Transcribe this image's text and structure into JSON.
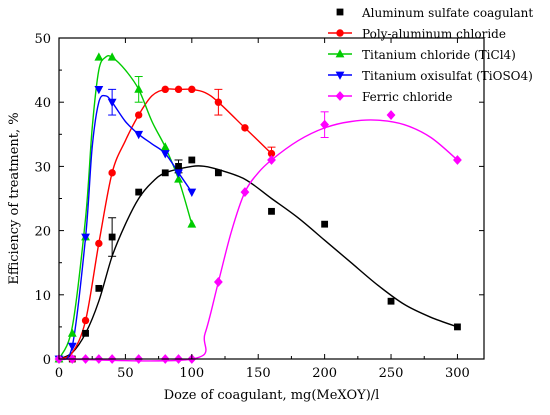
{
  "chart_data": {
    "type": "scatter",
    "xlabel": "Doze of coagulant, mg(MeXOY)/l",
    "ylabel": "Efficiency of treatment, %",
    "xlim": [
      0,
      320
    ],
    "ylim": [
      0,
      50
    ],
    "xticks": [
      0,
      50,
      100,
      150,
      200,
      250,
      300
    ],
    "yticks": [
      0,
      10,
      20,
      30,
      40,
      50
    ],
    "grid": false,
    "legend_position": "top-right",
    "series": [
      {
        "name": "Aluminum sulfate coagulant",
        "color": "#000000",
        "marker": "square",
        "fit_color": "#000000",
        "points": [
          [
            0,
            0
          ],
          [
            10,
            0
          ],
          [
            20,
            4
          ],
          [
            30,
            11
          ],
          [
            40,
            19
          ],
          [
            60,
            26
          ],
          [
            80,
            29
          ],
          [
            90,
            30
          ],
          [
            100,
            31
          ],
          [
            120,
            29
          ],
          [
            160,
            23
          ],
          [
            200,
            21
          ],
          [
            250,
            9
          ],
          [
            300,
            5
          ]
        ],
        "error_bars": [
          [
            40,
            19,
            3
          ],
          [
            90,
            30,
            1
          ]
        ],
        "fit": [
          [
            0,
            0
          ],
          [
            10,
            1
          ],
          [
            20,
            4
          ],
          [
            30,
            9
          ],
          [
            40,
            16
          ],
          [
            50,
            21
          ],
          [
            60,
            25
          ],
          [
            70,
            27.5
          ],
          [
            80,
            29
          ],
          [
            100,
            30
          ],
          [
            110,
            30
          ],
          [
            120,
            29.5
          ],
          [
            140,
            28
          ],
          [
            160,
            25
          ],
          [
            180,
            22
          ],
          [
            200,
            18.5
          ],
          [
            220,
            15
          ],
          [
            240,
            11.5
          ],
          [
            260,
            8.5
          ],
          [
            280,
            6.5
          ],
          [
            300,
            5
          ]
        ]
      },
      {
        "name": "Poly-aluminum chloride",
        "color": "#ff0000",
        "marker": "circle",
        "fit_color": "#ff0000",
        "points": [
          [
            0,
            0
          ],
          [
            10,
            0
          ],
          [
            20,
            6
          ],
          [
            30,
            18
          ],
          [
            40,
            29
          ],
          [
            60,
            38
          ],
          [
            80,
            42
          ],
          [
            90,
            42
          ],
          [
            100,
            42
          ],
          [
            120,
            40
          ],
          [
            140,
            36
          ],
          [
            160,
            32
          ]
        ],
        "error_bars": [
          [
            120,
            40,
            2
          ],
          [
            160,
            32,
            1
          ]
        ],
        "fit": [
          [
            0,
            0
          ],
          [
            10,
            1
          ],
          [
            20,
            6
          ],
          [
            30,
            18
          ],
          [
            40,
            29
          ],
          [
            50,
            34
          ],
          [
            60,
            38
          ],
          [
            70,
            41
          ],
          [
            80,
            42
          ],
          [
            90,
            42
          ],
          [
            100,
            42
          ],
          [
            110,
            41.5
          ],
          [
            120,
            40
          ],
          [
            140,
            36
          ],
          [
            160,
            32
          ]
        ]
      },
      {
        "name": "Titanium chloride (TiCl4)",
        "color": "#00cc00",
        "marker": "triangle-up",
        "fit_color": "#00cc00",
        "points": [
          [
            0,
            0
          ],
          [
            10,
            4
          ],
          [
            20,
            19
          ],
          [
            30,
            47
          ],
          [
            40,
            47
          ],
          [
            60,
            42
          ],
          [
            80,
            33
          ],
          [
            90,
            28
          ],
          [
            100,
            21
          ]
        ],
        "error_bars": [
          [
            60,
            42,
            2
          ]
        ],
        "fit": [
          [
            0,
            0
          ],
          [
            10,
            5
          ],
          [
            20,
            22
          ],
          [
            25,
            36
          ],
          [
            30,
            45
          ],
          [
            35,
            47
          ],
          [
            40,
            47
          ],
          [
            50,
            45
          ],
          [
            60,
            42
          ],
          [
            70,
            37
          ],
          [
            80,
            33
          ],
          [
            90,
            28
          ],
          [
            100,
            21
          ]
        ]
      },
      {
        "name": "Titanium oxisulfat (TiOSO4)",
        "color": "#0000ff",
        "marker": "triangle-down",
        "fit_color": "#0000ff",
        "points": [
          [
            0,
            0
          ],
          [
            10,
            2
          ],
          [
            20,
            19
          ],
          [
            30,
            42
          ],
          [
            40,
            40
          ],
          [
            60,
            35
          ],
          [
            80,
            32
          ],
          [
            90,
            29
          ],
          [
            100,
            26
          ]
        ],
        "error_bars": [
          [
            40,
            40,
            2
          ]
        ],
        "fit": [
          [
            0,
            0
          ],
          [
            10,
            2
          ],
          [
            20,
            19
          ],
          [
            25,
            33
          ],
          [
            30,
            40
          ],
          [
            35,
            41
          ],
          [
            40,
            40
          ],
          [
            50,
            37
          ],
          [
            60,
            35
          ],
          [
            70,
            33.5
          ],
          [
            80,
            32
          ],
          [
            90,
            29
          ],
          [
            100,
            26
          ]
        ]
      },
      {
        "name": "Ferric chloride",
        "color": "#ff00ff",
        "marker": "diamond",
        "fit_color": "#ff00ff",
        "points": [
          [
            0,
            0
          ],
          [
            10,
            0
          ],
          [
            20,
            0
          ],
          [
            30,
            0
          ],
          [
            40,
            0
          ],
          [
            60,
            0
          ],
          [
            80,
            0
          ],
          [
            90,
            0
          ],
          [
            100,
            0
          ],
          [
            120,
            12
          ],
          [
            140,
            26
          ],
          [
            160,
            31
          ],
          [
            200,
            36.5
          ],
          [
            250,
            38
          ],
          [
            300,
            31
          ]
        ],
        "error_bars": [
          [
            200,
            36.5,
            2
          ]
        ],
        "fit": [
          [
            0,
            0
          ],
          [
            100,
            0
          ],
          [
            110,
            4
          ],
          [
            120,
            12
          ],
          [
            130,
            20
          ],
          [
            140,
            26
          ],
          [
            150,
            29
          ],
          [
            160,
            31
          ],
          [
            180,
            34
          ],
          [
            200,
            36
          ],
          [
            220,
            37
          ],
          [
            240,
            37.2
          ],
          [
            260,
            36.5
          ],
          [
            280,
            34.5
          ],
          [
            300,
            31
          ]
        ]
      }
    ]
  }
}
